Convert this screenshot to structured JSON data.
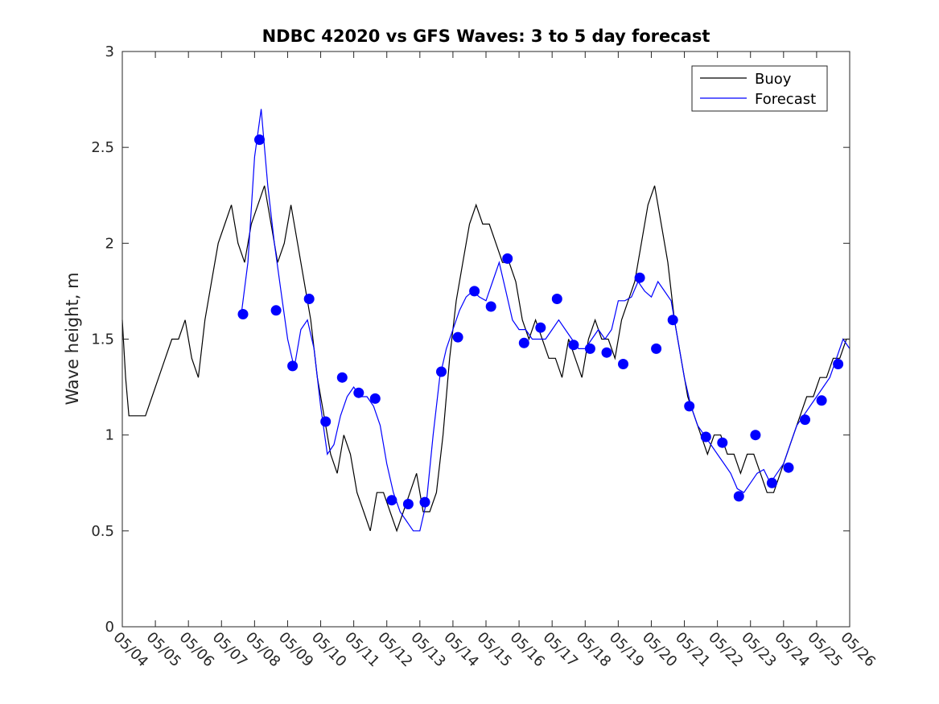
{
  "chart_data": {
    "type": "line",
    "title": "NDBC 42020 vs GFS Waves: 3 to 5 day forecast",
    "xlabel": "",
    "ylabel": "Wave height, m",
    "xlim": [
      "05/04",
      "05/26"
    ],
    "ylim": [
      0,
      3
    ],
    "x_ticks": [
      "05/04",
      "05/05",
      "05/06",
      "05/07",
      "05/08",
      "05/09",
      "05/10",
      "05/11",
      "05/12",
      "05/13",
      "05/14",
      "05/15",
      "05/16",
      "05/17",
      "05/18",
      "05/19",
      "05/20",
      "05/21",
      "05/22",
      "05/23",
      "05/24",
      "05/25",
      "05/26"
    ],
    "y_ticks": [
      "0",
      "0.5",
      "1",
      "1.5",
      "2",
      "2.5",
      "3"
    ],
    "grid": false,
    "legend_position": "top-right",
    "legend": [
      "Buoy",
      "Forecast"
    ],
    "colors": {
      "buoy": "#000000",
      "forecast": "#0000ff"
    },
    "series": [
      {
        "name": "Buoy",
        "x": [
          4.0,
          4.1,
          4.2,
          4.3,
          4.5,
          4.7,
          4.9,
          5.1,
          5.3,
          5.5,
          5.7,
          5.9,
          6.1,
          6.3,
          6.5,
          6.7,
          6.9,
          7.1,
          7.3,
          7.5,
          7.7,
          7.9,
          8.1,
          8.3,
          8.5,
          8.7,
          8.9,
          9.1,
          9.3,
          9.5,
          9.7,
          9.9,
          10.1,
          10.3,
          10.5,
          10.7,
          10.9,
          11.1,
          11.3,
          11.5,
          11.7,
          11.9,
          12.1,
          12.3,
          12.5,
          12.7,
          12.9,
          13.1,
          13.3,
          13.5,
          13.7,
          13.9,
          14.1,
          14.3,
          14.5,
          14.7,
          14.9,
          15.1,
          15.3,
          15.5,
          15.7,
          15.9,
          16.1,
          16.3,
          16.5,
          16.7,
          16.9,
          17.1,
          17.3,
          17.5,
          17.7,
          17.9,
          18.1,
          18.3,
          18.5,
          18.7,
          18.9,
          19.1,
          19.3,
          19.5,
          19.7,
          19.9,
          20.1,
          20.3,
          20.5,
          20.7,
          20.9,
          21.1,
          21.3,
          21.5,
          21.7,
          21.9,
          22.1,
          22.3,
          22.5,
          22.7,
          22.9,
          23.1,
          23.3,
          23.5,
          23.7,
          23.9,
          24.1,
          24.3,
          24.5,
          24.7,
          24.9,
          25.1,
          25.3,
          25.5,
          25.7,
          25.9,
          26.0
        ],
        "y": [
          1.6,
          1.3,
          1.1,
          1.1,
          1.1,
          1.1,
          1.2,
          1.3,
          1.4,
          1.5,
          1.5,
          1.6,
          1.4,
          1.3,
          1.6,
          1.8,
          2.0,
          2.1,
          2.2,
          2.0,
          1.9,
          2.1,
          2.2,
          2.3,
          2.1,
          1.9,
          2.0,
          2.2,
          2.0,
          1.8,
          1.6,
          1.3,
          1.1,
          0.9,
          0.8,
          1.0,
          0.9,
          0.7,
          0.6,
          0.5,
          0.7,
          0.7,
          0.6,
          0.5,
          0.6,
          0.7,
          0.8,
          0.6,
          0.6,
          0.7,
          1.0,
          1.4,
          1.7,
          1.9,
          2.1,
          2.2,
          2.1,
          2.1,
          2.0,
          1.9,
          1.9,
          1.8,
          1.6,
          1.5,
          1.6,
          1.5,
          1.4,
          1.4,
          1.3,
          1.5,
          1.4,
          1.3,
          1.5,
          1.6,
          1.5,
          1.5,
          1.4,
          1.6,
          1.7,
          1.8,
          2.0,
          2.2,
          2.3,
          2.1,
          1.9,
          1.6,
          1.4,
          1.2,
          1.1,
          1.0,
          0.9,
          1.0,
          1.0,
          0.9,
          0.9,
          0.8,
          0.9,
          0.9,
          0.8,
          0.7,
          0.7,
          0.8,
          0.9,
          1.0,
          1.1,
          1.2,
          1.2,
          1.3,
          1.3,
          1.4,
          1.4,
          1.5,
          1.5
        ]
      },
      {
        "name": "Forecast",
        "x": [
          7.6,
          7.8,
          8.0,
          8.2,
          8.4,
          8.6,
          8.8,
          9.0,
          9.2,
          9.4,
          9.6,
          9.8,
          10.0,
          10.2,
          10.4,
          10.6,
          10.8,
          11.0,
          11.2,
          11.4,
          11.6,
          11.8,
          12.0,
          12.2,
          12.4,
          12.6,
          12.8,
          13.0,
          13.2,
          13.4,
          13.6,
          13.8,
          14.0,
          14.2,
          14.4,
          14.6,
          14.8,
          15.0,
          15.2,
          15.4,
          15.6,
          15.8,
          16.0,
          16.2,
          16.4,
          16.6,
          16.8,
          17.0,
          17.2,
          17.4,
          17.6,
          17.8,
          18.0,
          18.2,
          18.4,
          18.6,
          18.8,
          19.0,
          19.2,
          19.4,
          19.6,
          19.8,
          20.0,
          20.2,
          20.4,
          20.6,
          20.8,
          21.0,
          21.2,
          21.4,
          21.6,
          21.8,
          22.0,
          22.2,
          22.4,
          22.6,
          22.8,
          23.0,
          23.2,
          23.4,
          23.6,
          23.8,
          24.0,
          24.2,
          24.4,
          24.6,
          24.8,
          25.0,
          25.2,
          25.4,
          25.6,
          25.8,
          26.0
        ],
        "y": [
          1.63,
          1.9,
          2.45,
          2.7,
          2.3,
          2.0,
          1.75,
          1.5,
          1.35,
          1.55,
          1.6,
          1.45,
          1.15,
          0.9,
          0.95,
          1.1,
          1.2,
          1.25,
          1.2,
          1.2,
          1.15,
          1.05,
          0.85,
          0.7,
          0.6,
          0.55,
          0.5,
          0.5,
          0.65,
          1.0,
          1.3,
          1.45,
          1.55,
          1.65,
          1.72,
          1.75,
          1.72,
          1.7,
          1.8,
          1.9,
          1.75,
          1.6,
          1.55,
          1.55,
          1.5,
          1.5,
          1.5,
          1.55,
          1.6,
          1.55,
          1.5,
          1.45,
          1.45,
          1.5,
          1.55,
          1.5,
          1.55,
          1.7,
          1.7,
          1.72,
          1.8,
          1.75,
          1.72,
          1.8,
          1.75,
          1.7,
          1.5,
          1.3,
          1.15,
          1.05,
          1.0,
          0.95,
          0.9,
          0.85,
          0.8,
          0.72,
          0.7,
          0.75,
          0.8,
          0.82,
          0.75,
          0.8,
          0.85,
          0.95,
          1.05,
          1.1,
          1.15,
          1.2,
          1.25,
          1.3,
          1.4,
          1.5,
          1.45
        ]
      },
      {
        "name": "Forecast points",
        "x": [
          7.65,
          8.15,
          8.65,
          9.15,
          9.65,
          10.15,
          10.65,
          11.15,
          11.65,
          12.15,
          12.65,
          13.15,
          13.65,
          14.15,
          14.65,
          15.15,
          15.65,
          16.15,
          16.65,
          17.15,
          17.65,
          18.15,
          18.65,
          19.15,
          19.65,
          20.15,
          20.65,
          21.15,
          21.65,
          22.15,
          22.65,
          23.15,
          23.65,
          24.15,
          24.65,
          25.15,
          25.65
        ],
        "y": [
          1.63,
          2.54,
          1.65,
          1.36,
          1.71,
          1.07,
          1.3,
          1.22,
          1.19,
          0.66,
          0.64,
          0.65,
          1.33,
          1.51,
          1.75,
          1.67,
          1.92,
          1.48,
          1.56,
          1.71,
          1.47,
          1.45,
          1.43,
          1.37,
          1.82,
          1.45,
          1.6,
          1.15,
          0.99,
          0.96,
          0.68,
          1.0,
          0.75,
          0.83,
          1.08,
          1.18,
          1.37
        ]
      }
    ]
  }
}
